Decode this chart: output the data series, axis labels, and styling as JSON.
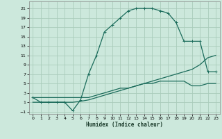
{
  "title": "",
  "xlabel": "Humidex (Indice chaleur)",
  "bg_color": "#cce8dc",
  "grid_color": "#aaccbb",
  "line_color": "#1a6b5a",
  "xlim": [
    -0.5,
    23.5
  ],
  "ylim": [
    -1.5,
    22.5
  ],
  "xticks": [
    0,
    1,
    2,
    3,
    4,
    5,
    6,
    7,
    8,
    9,
    10,
    11,
    12,
    13,
    14,
    15,
    16,
    17,
    18,
    19,
    20,
    21,
    22,
    23
  ],
  "yticks": [
    -1,
    1,
    3,
    5,
    7,
    9,
    11,
    13,
    15,
    17,
    19,
    21
  ],
  "curve1_x": [
    0,
    1,
    2,
    3,
    4,
    5,
    6,
    7,
    8,
    9,
    10,
    11,
    12,
    13,
    14,
    15,
    16,
    17,
    18,
    19,
    20,
    21,
    22,
    23
  ],
  "curve1_y": [
    2,
    1,
    1,
    1,
    1,
    -0.8,
    1.5,
    7,
    11,
    16,
    17.5,
    19,
    20.5,
    21,
    21,
    21,
    20.5,
    20,
    18,
    14,
    14,
    14,
    7.5,
    7.5
  ],
  "curve2_x": [
    0,
    1,
    2,
    3,
    4,
    5,
    6,
    7,
    8,
    9,
    10,
    11,
    12,
    13,
    14,
    15,
    16,
    17,
    18,
    19,
    20,
    21,
    22,
    23
  ],
  "curve2_y": [
    1,
    1,
    1,
    1,
    1,
    1,
    1.2,
    1.5,
    2,
    2.5,
    3,
    3.5,
    4,
    4.5,
    5,
    5.5,
    6,
    6.5,
    7,
    7.5,
    8,
    9,
    10.5,
    11
  ],
  "curve3_x": [
    0,
    1,
    2,
    3,
    4,
    5,
    6,
    7,
    8,
    9,
    10,
    11,
    12,
    13,
    14,
    15,
    16,
    17,
    18,
    19,
    20,
    21,
    22,
    23
  ],
  "curve3_y": [
    2,
    2,
    2,
    2,
    2,
    2,
    2,
    2,
    2.5,
    3,
    3.5,
    4,
    4,
    4.5,
    5,
    5,
    5.5,
    5.5,
    5.5,
    5.5,
    4.5,
    4.5,
    5,
    5
  ]
}
